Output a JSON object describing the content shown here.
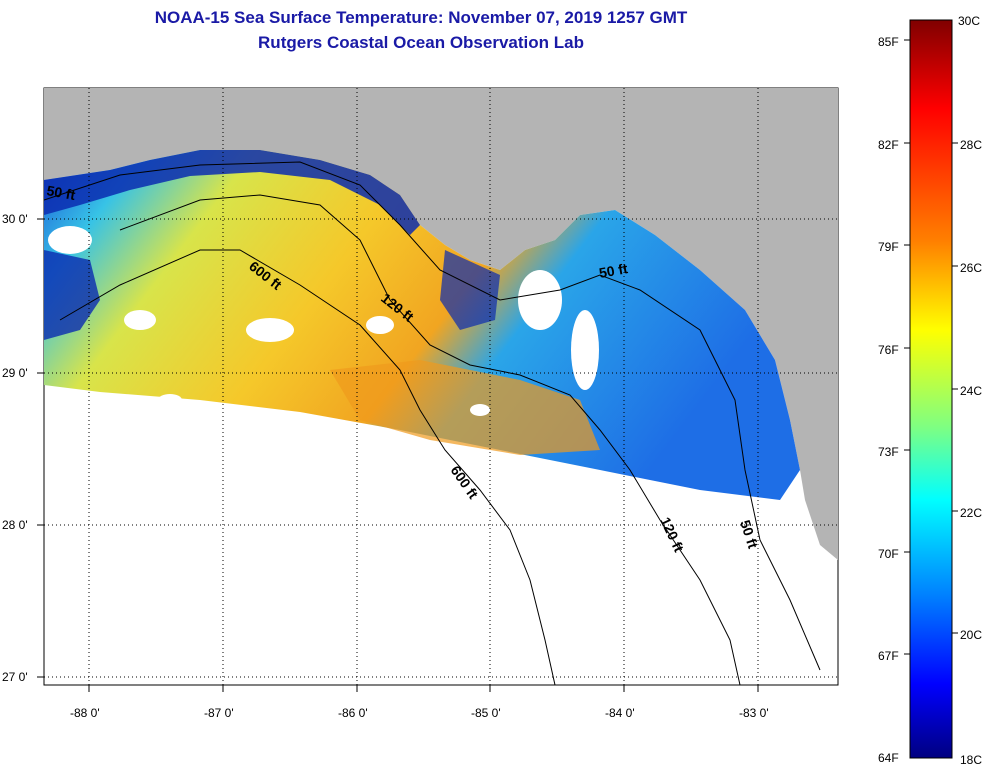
{
  "header": {
    "title": "NOAA-15 Sea Surface Temperature:  November 07, 2019 1257 GMT",
    "subtitle": "Rutgers Coastal Ocean Observation Lab"
  },
  "axes": {
    "lat_labels": [
      "30 0'",
      "29 0'",
      "28 0'",
      "27 0'"
    ],
    "lon_labels": [
      "-88 0'",
      "-87 0'",
      "-86 0'",
      "-85 0'",
      "-84 0'",
      "-83 0'"
    ]
  },
  "isobaths": {
    "labels": [
      "600 ft",
      "120 ft",
      "50 ft",
      "600 ft",
      "120 ft",
      "50 ft",
      "50 ft"
    ]
  },
  "colorbar": {
    "fahrenheit_labels": [
      "85F",
      "82F",
      "79F",
      "76F",
      "73F",
      "70F",
      "67F",
      "64F"
    ],
    "celsius_labels": [
      "30C",
      "28C",
      "26C",
      "24C",
      "22C",
      "20C",
      "18C"
    ],
    "gradient": [
      "#800000",
      "#ff0000",
      "#ff8000",
      "#ffff00",
      "#80ff80",
      "#00ffff",
      "#0080ff",
      "#0000ff",
      "#000080"
    ]
  },
  "colors": {
    "land": "#b4b4b4",
    "title": "#1a1aa6",
    "missing_data": "#ffffff"
  }
}
